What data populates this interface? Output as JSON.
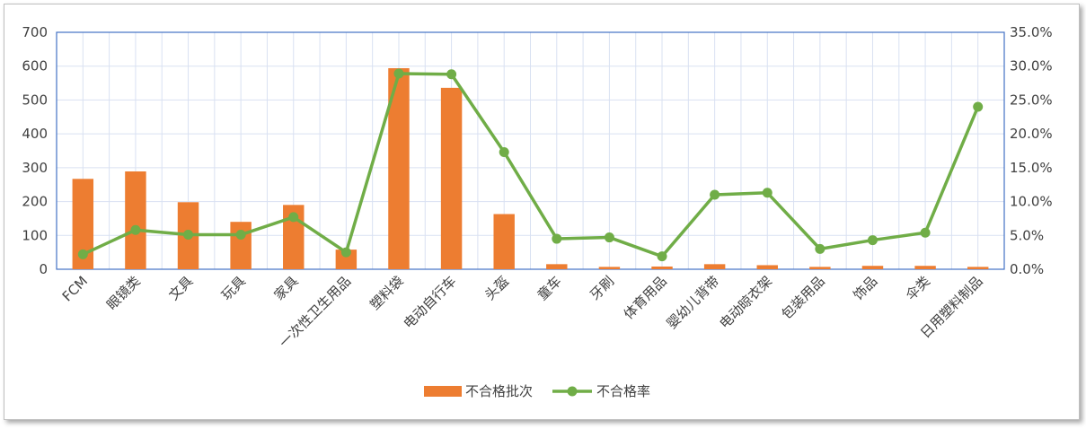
{
  "chart_data": {
    "type": "bar",
    "title": "",
    "categories": [
      "FCM",
      "眼镜类",
      "文具",
      "玩具",
      "家具",
      "一次性卫生用品",
      "塑料袋",
      "电动自行车",
      "头盔",
      "童车",
      "牙刷",
      "体育用品",
      "婴幼儿背带",
      "电动晾衣架",
      "包装用品",
      "饰品",
      "伞类",
      "日用塑料制品"
    ],
    "series": [
      {
        "name": "不合格批次",
        "type": "bar",
        "axis": "left",
        "color": "#ed7d31",
        "values": [
          267,
          289,
          198,
          140,
          190,
          58,
          594,
          536,
          163,
          15,
          7,
          8,
          15,
          12,
          7,
          10,
          10,
          7
        ]
      },
      {
        "name": "不合格率",
        "type": "line",
        "axis": "right",
        "color": "#70ad47",
        "values": [
          0.022,
          0.058,
          0.051,
          0.051,
          0.077,
          0.025,
          0.289,
          0.288,
          0.173,
          0.045,
          0.047,
          0.019,
          0.11,
          0.113,
          0.03,
          0.043,
          0.054,
          0.24
        ]
      }
    ],
    "y_left": {
      "min": 0,
      "max": 700,
      "ticks": [
        0,
        100,
        200,
        300,
        400,
        500,
        600,
        700
      ],
      "tick_labels": [
        "0",
        "100",
        "200",
        "300",
        "400",
        "500",
        "600",
        "700"
      ]
    },
    "y_right": {
      "min": 0,
      "max": 0.35,
      "ticks": [
        0,
        0.05,
        0.1,
        0.15,
        0.2,
        0.25,
        0.3,
        0.35
      ],
      "tick_labels": [
        "0.0%",
        "5.0%",
        "10.0%",
        "15.0%",
        "20.0%",
        "25.0%",
        "30.0%",
        "35.0%"
      ]
    },
    "grid": true,
    "legend": "bottom"
  }
}
